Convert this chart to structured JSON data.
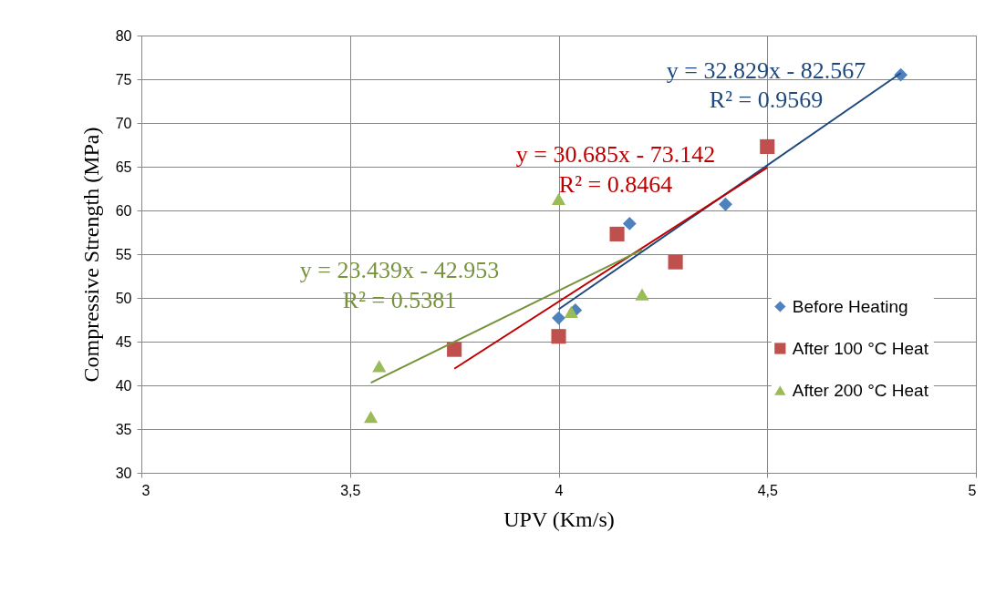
{
  "chart_data": {
    "type": "scatter",
    "xlabel": "UPV (Km/s)",
    "ylabel": "Compressive Strength (MPa)",
    "xlim": [
      3,
      5
    ],
    "xticks": [
      3,
      {
        "value": 3.5,
        "label": "3,5"
      },
      4,
      {
        "value": 4.5,
        "label": "4,5"
      },
      5
    ],
    "ylim": [
      30,
      80
    ],
    "yticks": [
      30,
      35,
      40,
      45,
      50,
      55,
      60,
      65,
      70,
      75,
      80
    ],
    "grid": true,
    "legend": "right",
    "series": [
      {
        "name": "Before Heating",
        "color": "#4f81bd",
        "marker": "diamond",
        "x": [
          4.0,
          4.04,
          4.17,
          4.4,
          4.82
        ],
        "values": [
          47.7,
          48.6,
          58.5,
          60.7,
          75.5
        ]
      },
      {
        "name": "After 100 °C Heat",
        "color": "#c0504d",
        "marker": "square",
        "x": [
          3.75,
          4.0,
          4.14,
          4.28,
          4.5
        ],
        "values": [
          44.1,
          45.6,
          57.3,
          54.1,
          67.3
        ]
      },
      {
        "name": "After 200 °C  Heat",
        "color": "#9bbb59",
        "marker": "triangle",
        "x": [
          3.55,
          3.57,
          4.0,
          4.03,
          4.2
        ],
        "values": [
          36.4,
          42.2,
          61.3,
          48.4,
          50.4
        ]
      },
      {
        "type": "line",
        "color": "#1f497d",
        "x": [
          4.0,
          4.82
        ],
        "values": [
          48.7,
          75.7
        ]
      },
      {
        "type": "line",
        "color": "#c00000",
        "x": [
          3.75,
          4.5
        ],
        "values": [
          41.9,
          64.9
        ]
      },
      {
        "type": "line",
        "color": "#77933c",
        "x": [
          3.55,
          4.2
        ],
        "values": [
          40.3,
          55.5
        ]
      }
    ],
    "annotations": [
      "y = 32.829x - 82.567",
      "R² = 0.9569",
      "y = 30.685x - 73.142",
      "R² = 0.8464",
      "y = 23.439x - 42.953",
      "R² = 0.5381"
    ]
  }
}
